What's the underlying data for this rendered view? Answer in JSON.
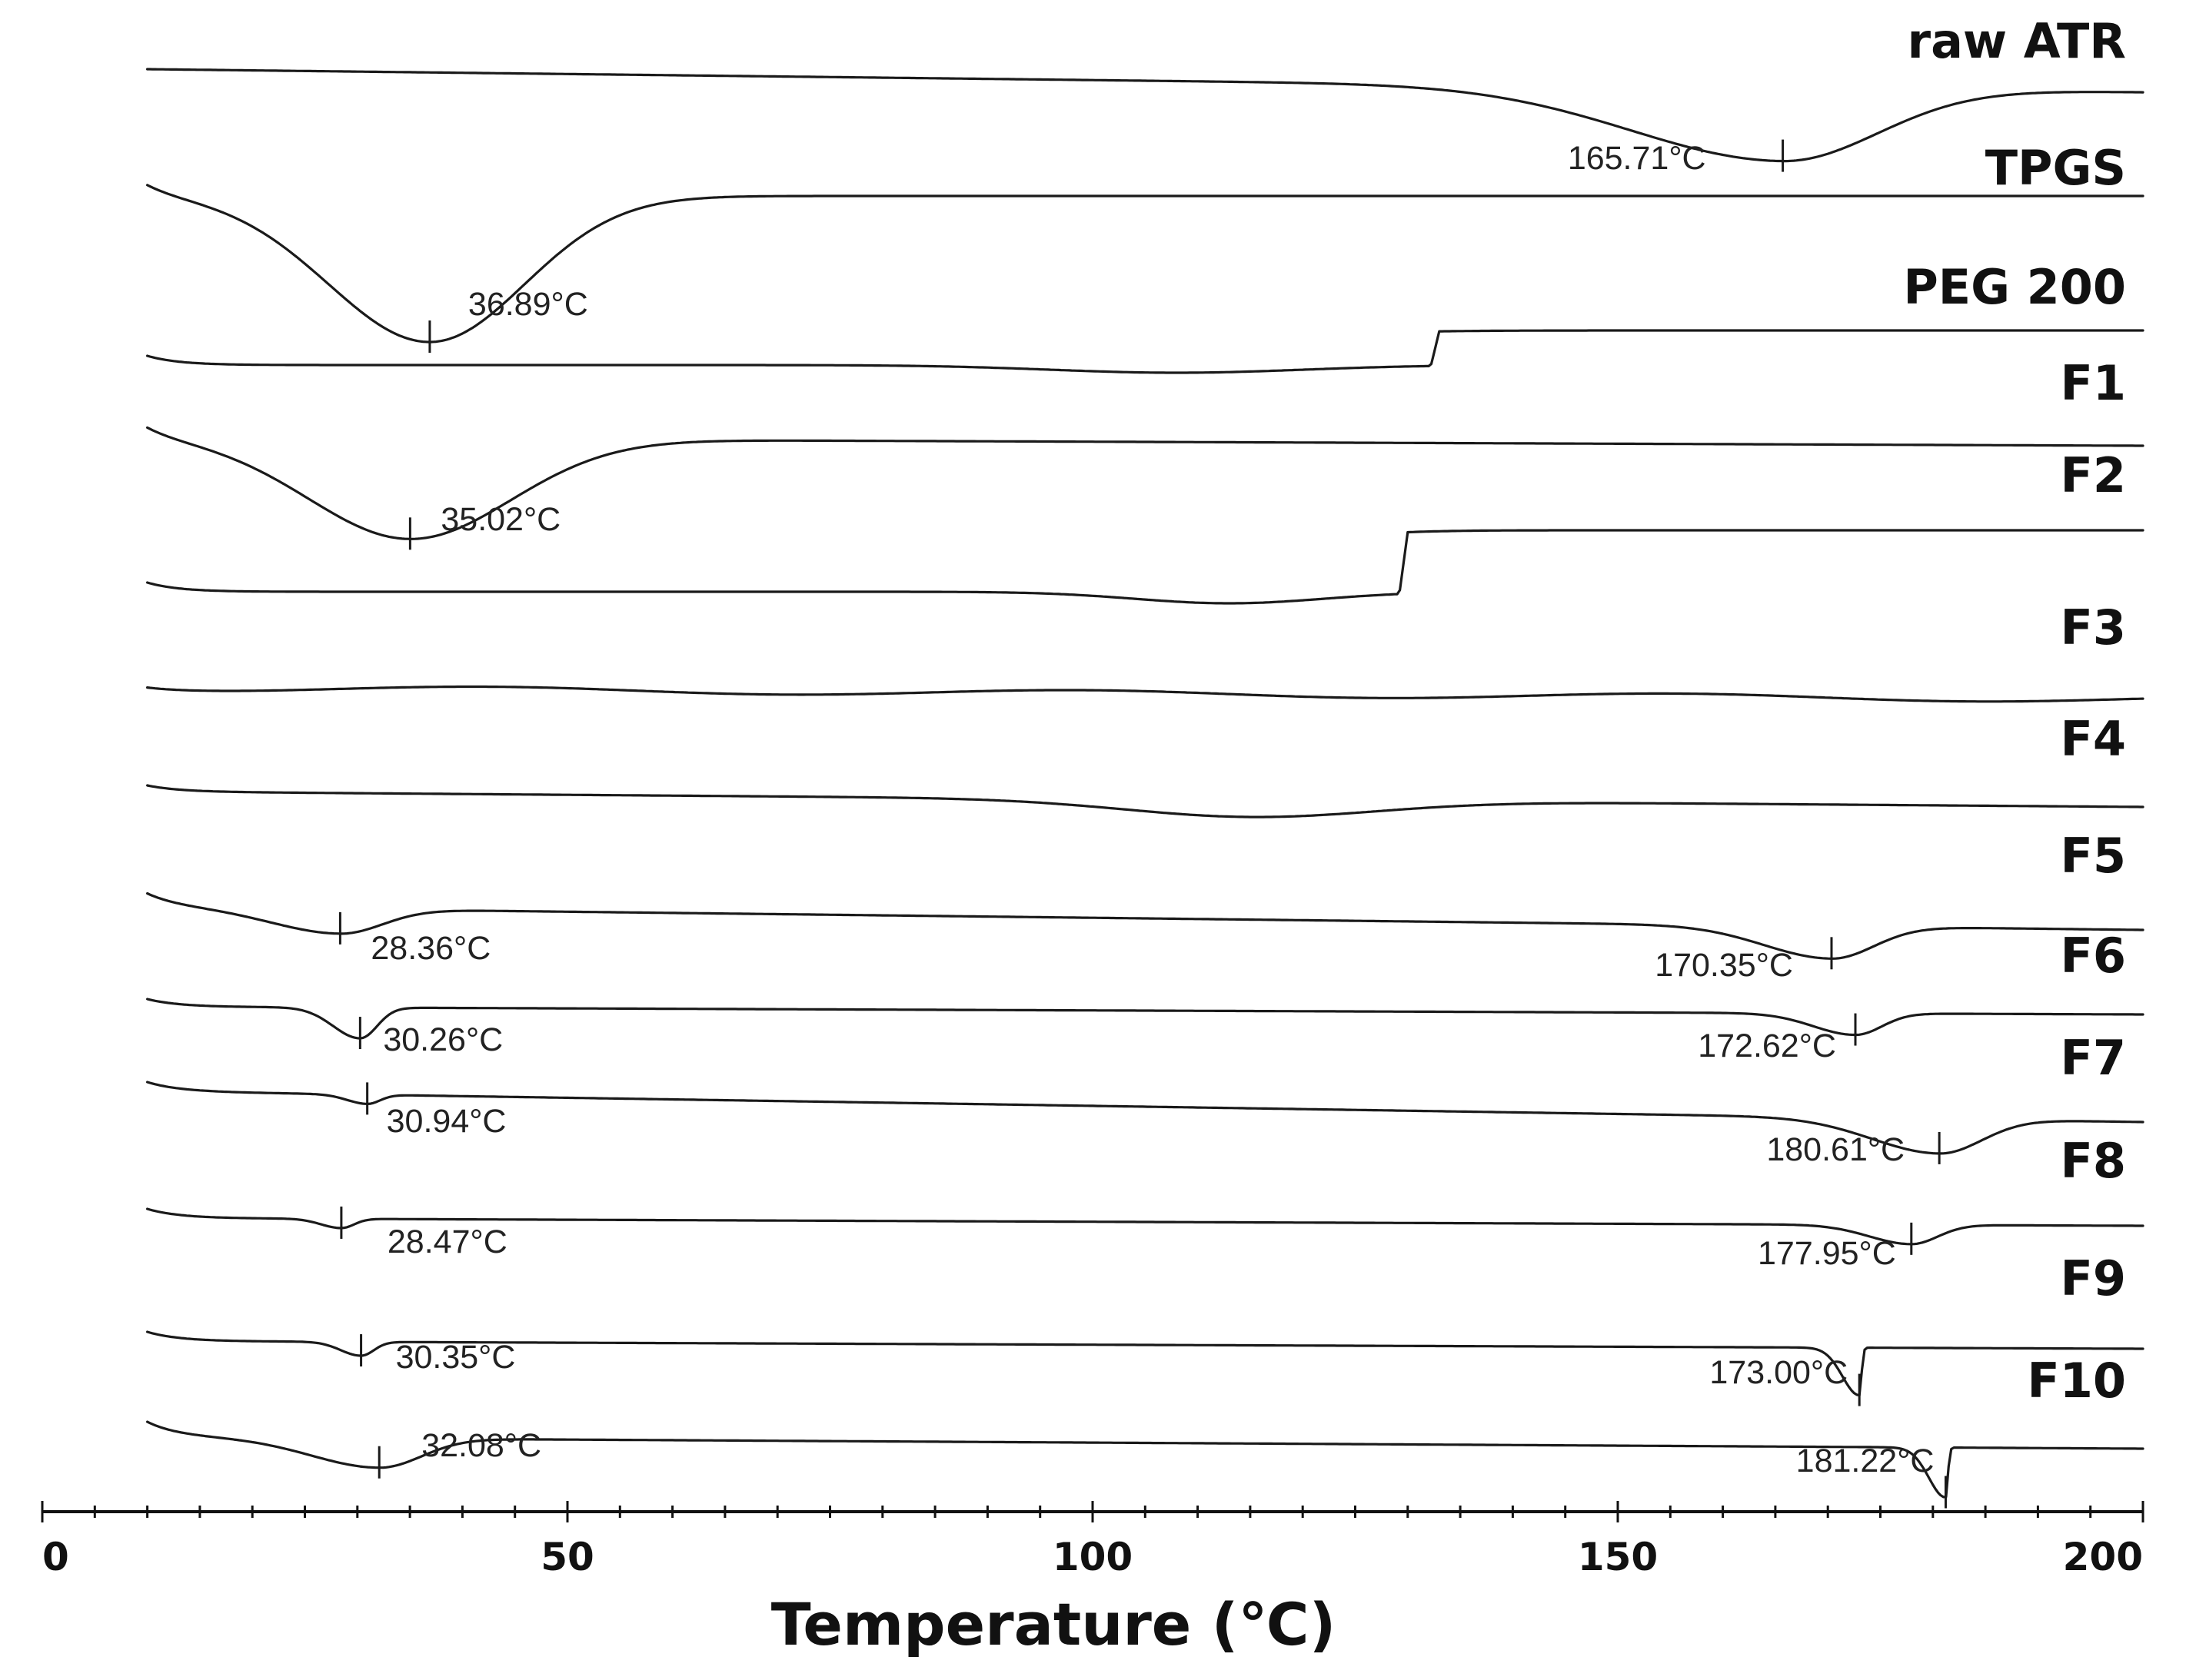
{
  "chart_data": {
    "type": "line",
    "title": "",
    "xlabel": "Temperature (℃)",
    "ylabel": "",
    "xlim": [
      0,
      200
    ],
    "x_ticks": [
      "0",
      "50",
      "100",
      "150",
      "200"
    ],
    "grid": false,
    "legend": "labels at right end of each curve",
    "series": [
      {
        "name": "raw ATR",
        "features": [
          {
            "type": "endo_peak",
            "x": 165.71,
            "label": "165.71°C"
          }
        ]
      },
      {
        "name": "TPGS",
        "features": [
          {
            "type": "endo_peak",
            "x": 36.89,
            "label": "36.89°C"
          }
        ]
      },
      {
        "name": "PEG 200",
        "features": [
          {
            "type": "step",
            "x": 133
          }
        ]
      },
      {
        "name": "F1",
        "features": [
          {
            "type": "endo_peak",
            "x": 35.02,
            "label": "35.02°C"
          }
        ]
      },
      {
        "name": "F2",
        "features": [
          {
            "type": "step",
            "x": 130
          }
        ]
      },
      {
        "name": "F3",
        "features": []
      },
      {
        "name": "F4",
        "features": [
          {
            "type": "broad_dip",
            "x": 115
          }
        ]
      },
      {
        "name": "F5",
        "features": [
          {
            "type": "endo_peak",
            "x": 28.36,
            "label": "28.36°C"
          },
          {
            "type": "endo_peak",
            "x": 170.35,
            "label": "170.35°C"
          }
        ]
      },
      {
        "name": "F6",
        "features": [
          {
            "type": "endo_peak",
            "x": 30.26,
            "label": "30.26°C"
          },
          {
            "type": "endo_peak",
            "x": 172.62,
            "label": "172.62°C"
          }
        ]
      },
      {
        "name": "F7",
        "features": [
          {
            "type": "endo_peak",
            "x": 30.94,
            "label": "30.94°C"
          },
          {
            "type": "endo_peak",
            "x": 180.61,
            "label": "180.61°C"
          }
        ]
      },
      {
        "name": "F8",
        "features": [
          {
            "type": "endo_peak",
            "x": 28.47,
            "label": "28.47°C"
          },
          {
            "type": "endo_peak",
            "x": 177.95,
            "label": "177.95°C"
          }
        ]
      },
      {
        "name": "F9",
        "features": [
          {
            "type": "endo_peak",
            "x": 30.35,
            "label": "30.35°C"
          },
          {
            "type": "endo_peak",
            "x": 173.0,
            "label": "173.00°C"
          }
        ]
      },
      {
        "name": "F10",
        "features": [
          {
            "type": "endo_peak",
            "x": 32.08,
            "label": "32.08°C"
          },
          {
            "type": "endo_peak",
            "x": 181.22,
            "label": "181.22°C"
          }
        ]
      }
    ]
  }
}
